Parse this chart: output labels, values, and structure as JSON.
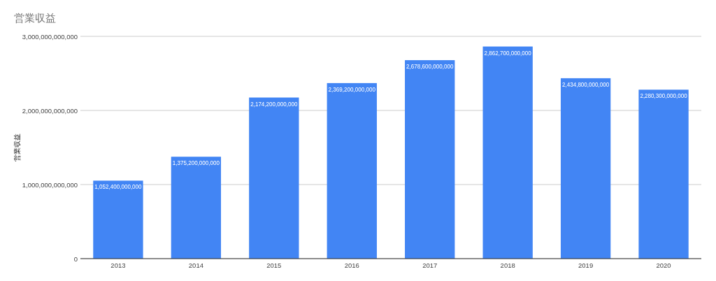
{
  "chart_data": {
    "type": "bar",
    "title": "営業収益",
    "ylabel": "営業収益",
    "categories": [
      "2013",
      "2014",
      "2015",
      "2016",
      "2017",
      "2018",
      "2019",
      "2020"
    ],
    "values": [
      1052400000000,
      1375200000000,
      2174200000000,
      2369200000000,
      2678600000000,
      2862700000000,
      2434800000000,
      2280300000000
    ],
    "color": "#4285f4",
    "ylim": [
      0,
      3000000000000
    ],
    "yticks": [
      {
        "value": 0,
        "label": "0"
      },
      {
        "value": 1000000000000,
        "label": "1,000,000,000,000"
      },
      {
        "value": 2000000000000,
        "label": "2,000,000,000,000"
      },
      {
        "value": 3000000000000,
        "label": "3,000,000,000,000"
      }
    ],
    "value_labels": [
      "1,052,400,000,000",
      "1,375,200,000,000",
      "2,174,200,000,000",
      "2,369,200,000,000",
      "2,678,600,000,000",
      "2,862,700,000,000",
      "2,434,800,000,000",
      "2,280,300,000,000"
    ],
    "grid": "y"
  }
}
